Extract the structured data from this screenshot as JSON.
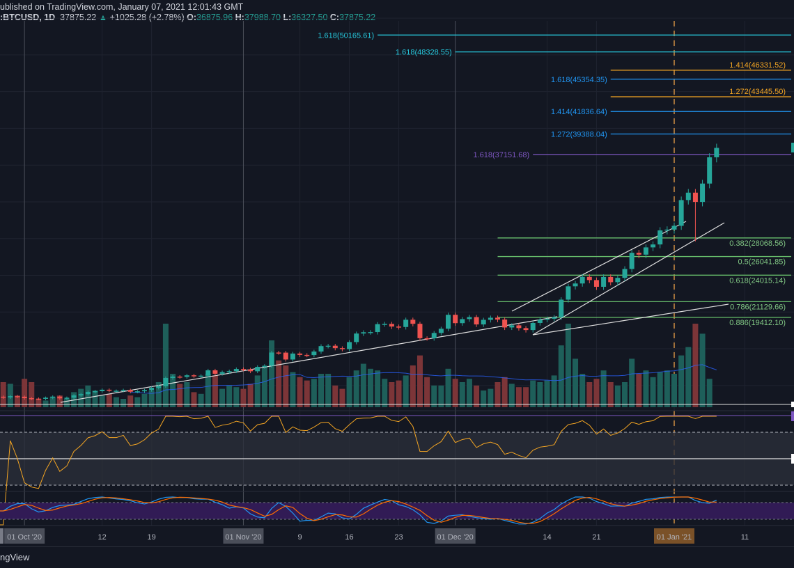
{
  "header": {
    "published": "ublished on TradingView.com, January 07, 2021 12:01:43 GMT",
    "symbol": ":BTCUSD, 1D",
    "last": "37875.22",
    "change": "+1025.28 (+2.78%)",
    "o_label": "O:",
    "o": "36875.96",
    "h_label": "H:",
    "h": "37988.70",
    "l_label": "L:",
    "l": "36327.50",
    "c_label": "C:",
    "c": "37875.22"
  },
  "footer": {
    "brand": "ngView"
  },
  "colors": {
    "up": "#26a69a",
    "down": "#ef5350",
    "rsi": "#f5a623",
    "stoch_k": "#2196f3",
    "stoch_d": "#ff6d00",
    "background": "#131722"
  },
  "fib_levels": [
    {
      "label": "1.618(50165.61)",
      "price": 50165.61,
      "color": "#26c6da",
      "start": "2020-11-20",
      "label_pos": "left"
    },
    {
      "label": "1.618(48328.55)",
      "price": 48328.55,
      "color": "#26c6da",
      "start": "2020-12-01",
      "label_pos": "left"
    },
    {
      "label": "1.414(46331.52)",
      "price": 46331.52,
      "color": "#f5a623",
      "start": "2020-12-23",
      "label_pos": "right"
    },
    {
      "label": "1.618(45354.35)",
      "price": 45354.35,
      "color": "#2196f3",
      "start": "2020-12-23",
      "label_pos": "left"
    },
    {
      "label": "1.272(43445.50)",
      "price": 43445.5,
      "color": "#f5a623",
      "start": "2020-12-23",
      "label_pos": "right"
    },
    {
      "label": "1.414(41836.64)",
      "price": 41836.64,
      "color": "#2196f3",
      "start": "2020-12-23",
      "label_pos": "left"
    },
    {
      "label": "1.272(39388.04)",
      "price": 39388.04,
      "color": "#2196f3",
      "start": "2020-12-23",
      "label_pos": "left"
    },
    {
      "label": "1.618(37151.68)",
      "price": 37151.68,
      "color": "#7e57c2",
      "start": "2020-12-12",
      "label_pos": "left"
    },
    {
      "label": "0.382(28068.56)",
      "price": 28068.56,
      "color": "#66bb6a",
      "start": "2020-12-07",
      "label_pos": "right"
    },
    {
      "label": "0.5(26041.85)",
      "price": 26041.85,
      "color": "#66bb6a",
      "start": "2020-12-07",
      "label_pos": "right"
    },
    {
      "label": "0.618(24015.14)",
      "price": 24015.14,
      "color": "#66bb6a",
      "start": "2020-12-07",
      "label_pos": "right"
    },
    {
      "label": "0.786(21129.66)",
      "price": 21129.66,
      "color": "#66bb6a",
      "start": "2020-12-07",
      "label_pos": "right"
    },
    {
      "label": "0.886(19412.10)",
      "price": 19412.1,
      "color": "#66bb6a",
      "start": "2020-12-07",
      "label_pos": "right"
    }
  ],
  "time_axis": [
    {
      "label": "01 Oct '20",
      "day": 4,
      "boxed": true
    },
    {
      "label": "12",
      "day": 15
    },
    {
      "label": "19",
      "day": 22
    },
    {
      "label": "01 Nov '20",
      "day": 35,
      "boxed": true
    },
    {
      "label": "9",
      "day": 43
    },
    {
      "label": "16",
      "day": 50
    },
    {
      "label": "23",
      "day": 57
    },
    {
      "label": "01 Dec '20",
      "day": 65,
      "boxed": true
    },
    {
      "label": "14",
      "day": 78
    },
    {
      "label": "21",
      "day": 85
    },
    {
      "label": "01 Jan '21",
      "day": 96,
      "boxed": true,
      "highlight": true
    },
    {
      "label": "11",
      "day": 106
    }
  ],
  "chart_data": {
    "type": "candlestick",
    "symbol": "BTCUSD",
    "interval": "1D",
    "start_date": "2020-09-27",
    "closes": [
      10780,
      10700,
      10840,
      10780,
      10620,
      10570,
      10550,
      10670,
      10790,
      10600,
      10670,
      10920,
      11060,
      11300,
      11380,
      11540,
      11430,
      11430,
      11510,
      11320,
      11370,
      11500,
      11750,
      11920,
      12820,
      12970,
      12930,
      13110,
      13030,
      13070,
      13650,
      13280,
      13460,
      13560,
      13800,
      13760,
      13550,
      14030,
      14150,
      15590,
      15580,
      14830,
      15480,
      15330,
      15310,
      15700,
      16290,
      16330,
      16070,
      15960,
      16730,
      17660,
      17800,
      17820,
      18680,
      18710,
      18420,
      18370,
      19160,
      18720,
      17150,
      17140,
      17720,
      18180,
      19700,
      18790,
      19230,
      19450,
      18650,
      19150,
      19380,
      19180,
      18320,
      18550,
      18250,
      18040,
      18810,
      19170,
      19270,
      19440,
      21350,
      22800,
      23110,
      23830,
      23480,
      22750,
      23820,
      23250,
      23720,
      24690,
      26450,
      26250,
      27040,
      27360,
      28890,
      28980,
      29390,
      32190,
      33000,
      31990,
      33990,
      36850,
      37875
    ],
    "volume": [
      12,
      30,
      28,
      14,
      34,
      30,
      10,
      8,
      12,
      14,
      10,
      18,
      22,
      26,
      20,
      14,
      16,
      12,
      10,
      14,
      12,
      16,
      20,
      30,
      100,
      40,
      28,
      30,
      18,
      16,
      40,
      38,
      22,
      26,
      24,
      22,
      28,
      38,
      48,
      80,
      56,
      50,
      42,
      36,
      32,
      34,
      40,
      40,
      26,
      22,
      36,
      44,
      52,
      46,
      44,
      34,
      30,
      32,
      38,
      50,
      62,
      36,
      26,
      26,
      46,
      34,
      30,
      34,
      26,
      20,
      22,
      30,
      36,
      28,
      24,
      24,
      32,
      30,
      32,
      38,
      74,
      100,
      58,
      40,
      30,
      34,
      44,
      30,
      26,
      30,
      58,
      40,
      44,
      36,
      42,
      44,
      40,
      62,
      72,
      100,
      88,
      34,
      0
    ],
    "price_axis": "linear",
    "rsi": {
      "length": 14,
      "upper": 70,
      "lower": 30
    },
    "stoch_rsi": {
      "k": 3,
      "d": 3,
      "upper": 80,
      "lower": 20
    }
  }
}
